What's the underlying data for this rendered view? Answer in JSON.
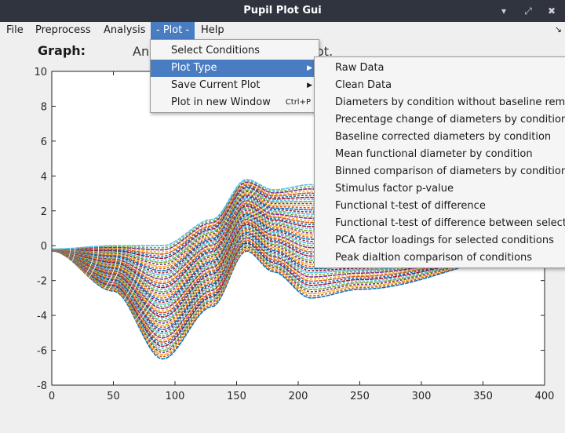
{
  "window": {
    "title": "Pupil Plot Gui"
  },
  "menubar": {
    "items": [
      "File",
      "Preprocess",
      "Analysis",
      "- Plot -",
      "Help"
    ],
    "corner": "↘"
  },
  "main": {
    "graph_label": "Graph:",
    "info_text": "An",
    "info_text_tail": "ot."
  },
  "plot_menu": {
    "items": [
      {
        "label": "Select Conditions",
        "accel": ""
      },
      {
        "label": "Plot Type",
        "accel": ""
      },
      {
        "label": "Save Current Plot",
        "accel": ""
      },
      {
        "label": "Plot in new Window",
        "accel": "Ctrl+P"
      }
    ]
  },
  "plot_type_menu": {
    "items": [
      "Raw Data",
      "Clean Data",
      "Diameters by condition without baseline remov",
      "Precentage change of diameters by condition",
      "Baseline corrected diameters by condition",
      "Mean functional diameter by condition",
      "Binned comparison of diameters by condition",
      "Stimulus factor p-value",
      "Functional t-test of difference",
      "Functional t-test of difference between selecte",
      "PCA factor loadings for selected conditions",
      "Peak dialtion comparison of conditions"
    ]
  },
  "chart_data": {
    "type": "line",
    "xlim": [
      0,
      400
    ],
    "ylim": [
      -8,
      10
    ],
    "xticks": [
      "0",
      "50",
      "100",
      "150",
      "200",
      "250",
      "300",
      "350",
      "400"
    ],
    "yticks": [
      "10",
      "8",
      "6",
      "4",
      "2",
      "0",
      "-2",
      "-4",
      "-6",
      "-8"
    ],
    "grid": false,
    "series_envelope": {
      "description_values": [
        {
          "x": 0,
          "upper": -0.2,
          "lower": -0.3
        },
        {
          "x": 50,
          "upper": 0,
          "lower": -2.6
        },
        {
          "x": 90,
          "upper": 0,
          "lower": -6.5
        },
        {
          "x": 130,
          "upper": 1.5,
          "lower": -3.5
        },
        {
          "x": 158,
          "upper": 3.8,
          "lower": -0.3
        },
        {
          "x": 180,
          "upper": 3.2,
          "lower": -1.5
        },
        {
          "x": 210,
          "upper": 3.5,
          "lower": -3.0
        },
        {
          "x": 250,
          "upper": 2.5,
          "lower": -2.5
        },
        {
          "x": 400,
          "upper": 0.3,
          "lower": -0.3
        }
      ]
    },
    "colors": [
      "#0072bd",
      "#d95319",
      "#edb120",
      "#7e2f8e",
      "#77ac30",
      "#4dbeee",
      "#a2142f"
    ]
  }
}
